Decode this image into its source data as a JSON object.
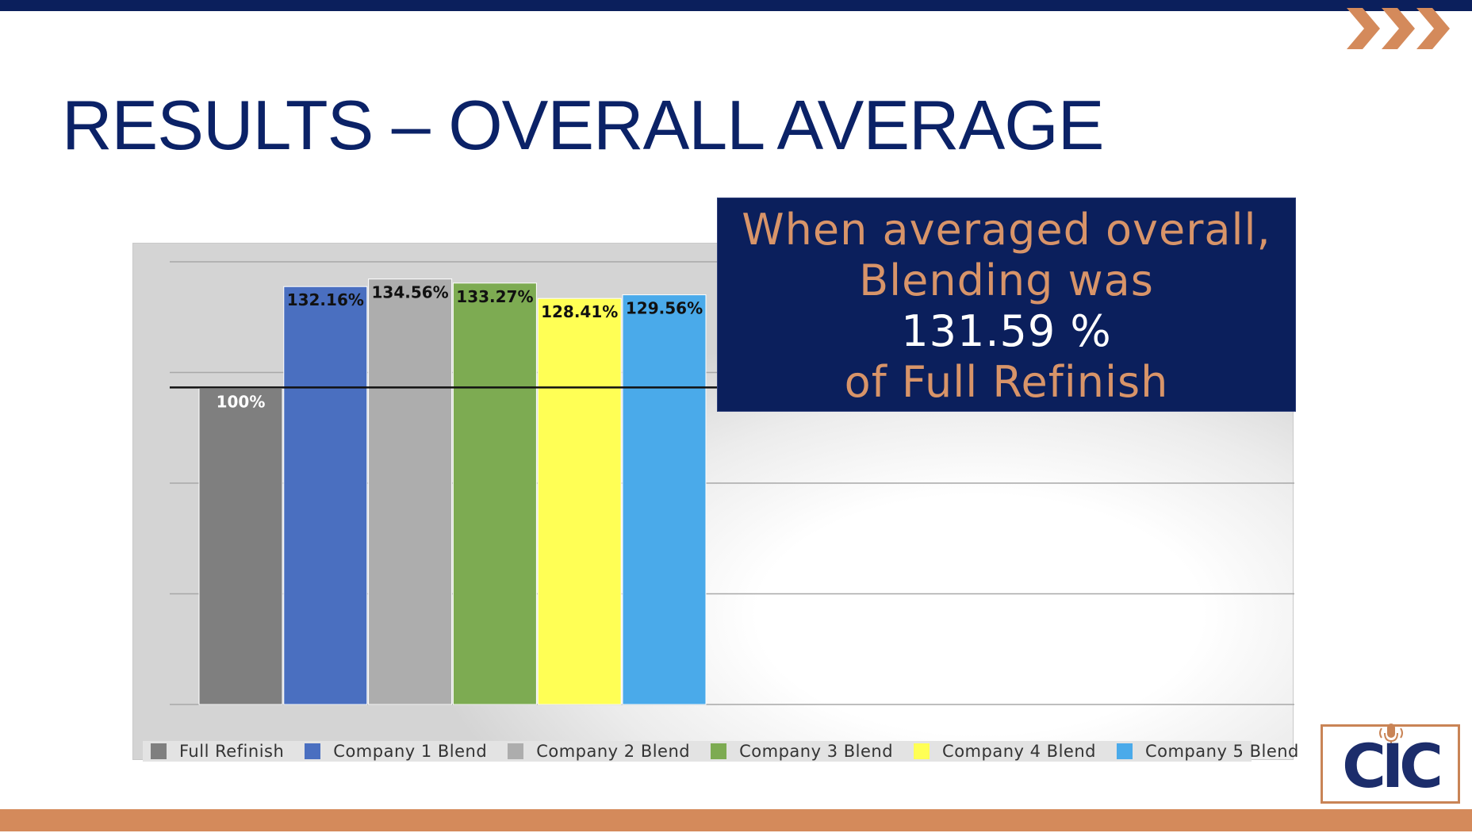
{
  "slide": {
    "title": "RESULTS – OVERALL AVERAGE",
    "colors": {
      "navy": "#0b1f5c",
      "accent_orange": "#d48a5b"
    }
  },
  "callout": {
    "line1": "When averaged overall,",
    "line2": "Blending was",
    "value": "131.59 %",
    "line4": "of Full Refinish"
  },
  "logo": {
    "text": "CIC"
  },
  "chart_data": {
    "type": "bar",
    "title": "",
    "xlabel": "",
    "ylabel": "",
    "ylim": [
      0,
      140
    ],
    "grid": true,
    "legend_position": "bottom",
    "reference_line": 100,
    "categories": [
      "Full Refinish",
      "Company 1 Blend",
      "Company 2 Blend",
      "Company 3 Blend",
      "Company 4 Blend",
      "Company 5 Blend"
    ],
    "values": [
      100,
      132.16,
      134.56,
      133.27,
      128.41,
      129.56
    ],
    "data_labels": [
      "100%",
      "132.16%",
      "134.56%",
      "133.27%",
      "128.41%",
      "129.56%"
    ],
    "colors": [
      "#7f7f7f",
      "#4a6fc0",
      "#adadad",
      "#7dab52",
      "#ffff55",
      "#4aaaea"
    ],
    "label_colors": [
      "#ffffff",
      "#111111",
      "#111111",
      "#111111",
      "#111111",
      "#111111"
    ]
  }
}
